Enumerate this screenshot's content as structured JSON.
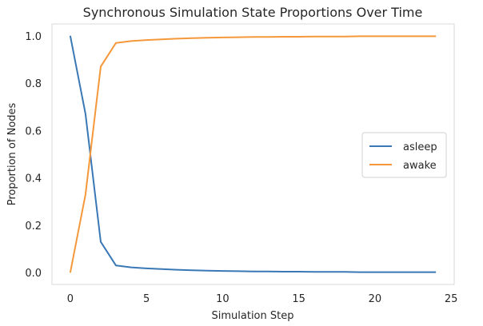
{
  "chart_data": {
    "type": "line",
    "title": "Synchronous Simulation State Proportions Over Time",
    "xlabel": "Simulation Step",
    "ylabel": "Proportion of Nodes",
    "xlim": [
      -1.2,
      25.2
    ],
    "ylim": [
      -0.05,
      1.05
    ],
    "xticks": [
      0,
      5,
      10,
      15,
      20,
      25
    ],
    "yticks": [
      0.0,
      0.2,
      0.4,
      0.6,
      0.8,
      1.0
    ],
    "xtick_labels": [
      "0",
      "5",
      "10",
      "15",
      "20",
      "25"
    ],
    "ytick_labels": [
      "0.0",
      "0.2",
      "0.4",
      "0.6",
      "0.8",
      "1.0"
    ],
    "grid": false,
    "legend_position": "center-right",
    "x": [
      0,
      1,
      2,
      3,
      4,
      5,
      6,
      7,
      8,
      9,
      10,
      11,
      12,
      13,
      14,
      15,
      16,
      17,
      18,
      19,
      20,
      21,
      22,
      23,
      24
    ],
    "series": [
      {
        "name": "asleep",
        "color": "#3978b5",
        "values": [
          1.0,
          0.67,
          0.13,
          0.03,
          0.022,
          0.018,
          0.015,
          0.012,
          0.01,
          0.008,
          0.007,
          0.006,
          0.005,
          0.005,
          0.004,
          0.004,
          0.003,
          0.003,
          0.003,
          0.002,
          0.002,
          0.002,
          0.002,
          0.002,
          0.002
        ]
      },
      {
        "name": "awake",
        "color": "#f5983a",
        "values": [
          0.0,
          0.33,
          0.87,
          0.97,
          0.978,
          0.982,
          0.985,
          0.988,
          0.99,
          0.992,
          0.993,
          0.994,
          0.995,
          0.995,
          0.996,
          0.996,
          0.997,
          0.997,
          0.997,
          0.998,
          0.998,
          0.998,
          0.998,
          0.998,
          0.998
        ]
      }
    ]
  }
}
